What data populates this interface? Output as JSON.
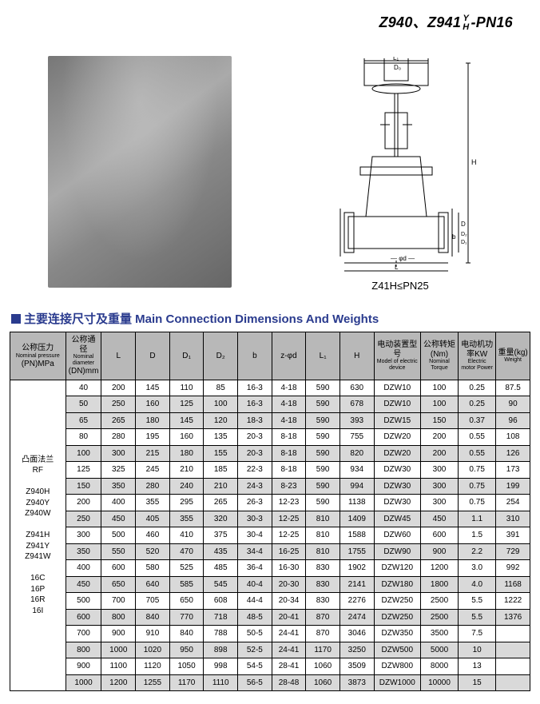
{
  "header": {
    "model_prefix": "Z940、Z941",
    "frac_top": "Y",
    "frac_bot": "H",
    "model_suffix": "-PN16"
  },
  "diagram_caption": "Z41H≤PN25",
  "section_title": "主要连接尺寸及重量 Main Connection Dimensions And Weights",
  "columns": [
    {
      "cn": "公称压力",
      "en": "Nominal pressure",
      "sub": "(PN)MPa"
    },
    {
      "cn": "公称通径",
      "en": "Nominal diameter",
      "sub": "(DN)mm"
    },
    {
      "cn": "L",
      "en": "",
      "sub": ""
    },
    {
      "cn": "D",
      "en": "",
      "sub": ""
    },
    {
      "cn": "D₁",
      "en": "",
      "sub": ""
    },
    {
      "cn": "D₂",
      "en": "",
      "sub": ""
    },
    {
      "cn": "b",
      "en": "",
      "sub": ""
    },
    {
      "cn": "z-φd",
      "en": "",
      "sub": ""
    },
    {
      "cn": "L₁",
      "en": "",
      "sub": ""
    },
    {
      "cn": "H",
      "en": "",
      "sub": ""
    },
    {
      "cn": "电动装置型号",
      "en": "Model of electric device",
      "sub": ""
    },
    {
      "cn": "公称转矩(Nm)",
      "en": "Nominal Torque",
      "sub": ""
    },
    {
      "cn": "电动机功率KW",
      "en": "Electric motor Power",
      "sub": ""
    },
    {
      "cn": "重量(kg)",
      "en": "Weight",
      "sub": ""
    }
  ],
  "row_header_lines": [
    "凸面法兰",
    "RF",
    "",
    "Z940H",
    "Z940Y",
    "Z940W",
    "",
    "Z941H",
    "Z941Y",
    "Z941W",
    "",
    "16C",
    "16P",
    "16R",
    "16I"
  ],
  "rows": [
    {
      "shade": false,
      "c": [
        "40",
        "200",
        "145",
        "110",
        "85",
        "16-3",
        "4-18",
        "590",
        "630",
        "DZW10",
        "100",
        "0.25",
        "87.5"
      ]
    },
    {
      "shade": true,
      "c": [
        "50",
        "250",
        "160",
        "125",
        "100",
        "16-3",
        "4-18",
        "590",
        "678",
        "DZW10",
        "100",
        "0.25",
        "90"
      ]
    },
    {
      "shade": true,
      "c": [
        "65",
        "265",
        "180",
        "145",
        "120",
        "18-3",
        "4-18",
        "590",
        "393",
        "DZW15",
        "150",
        "0.37",
        "96"
      ]
    },
    {
      "shade": false,
      "c": [
        "80",
        "280",
        "195",
        "160",
        "135",
        "20-3",
        "8-18",
        "590",
        "755",
        "DZW20",
        "200",
        "0.55",
        "108"
      ]
    },
    {
      "shade": true,
      "c": [
        "100",
        "300",
        "215",
        "180",
        "155",
        "20-3",
        "8-18",
        "590",
        "820",
        "DZW20",
        "200",
        "0.55",
        "126"
      ]
    },
    {
      "shade": false,
      "c": [
        "125",
        "325",
        "245",
        "210",
        "185",
        "22-3",
        "8-18",
        "590",
        "934",
        "DZW30",
        "300",
        "0.75",
        "173"
      ]
    },
    {
      "shade": true,
      "c": [
        "150",
        "350",
        "280",
        "240",
        "210",
        "24-3",
        "8-23",
        "590",
        "994",
        "DZW30",
        "300",
        "0.75",
        "199"
      ]
    },
    {
      "shade": false,
      "c": [
        "200",
        "400",
        "355",
        "295",
        "265",
        "26-3",
        "12-23",
        "590",
        "1138",
        "DZW30",
        "300",
        "0.75",
        "254"
      ]
    },
    {
      "shade": true,
      "c": [
        "250",
        "450",
        "405",
        "355",
        "320",
        "30-3",
        "12-25",
        "810",
        "1409",
        "DZW45",
        "450",
        "1.1",
        "310"
      ]
    },
    {
      "shade": false,
      "c": [
        "300",
        "500",
        "460",
        "410",
        "375",
        "30-4",
        "12-25",
        "810",
        "1588",
        "DZW60",
        "600",
        "1.5",
        "391"
      ]
    },
    {
      "shade": true,
      "c": [
        "350",
        "550",
        "520",
        "470",
        "435",
        "34-4",
        "16-25",
        "810",
        "1755",
        "DZW90",
        "900",
        "2.2",
        "729"
      ]
    },
    {
      "shade": false,
      "c": [
        "400",
        "600",
        "580",
        "525",
        "485",
        "36-4",
        "16-30",
        "830",
        "1902",
        "DZW120",
        "1200",
        "3.0",
        "992"
      ]
    },
    {
      "shade": true,
      "c": [
        "450",
        "650",
        "640",
        "585",
        "545",
        "40-4",
        "20-30",
        "830",
        "2141",
        "DZW180",
        "1800",
        "4.0",
        "1168"
      ]
    },
    {
      "shade": false,
      "c": [
        "500",
        "700",
        "705",
        "650",
        "608",
        "44-4",
        "20-34",
        "830",
        "2276",
        "DZW250",
        "2500",
        "5.5",
        "1222"
      ]
    },
    {
      "shade": true,
      "c": [
        "600",
        "800",
        "840",
        "770",
        "718",
        "48-5",
        "20-41",
        "870",
        "2474",
        "DZW250",
        "2500",
        "5.5",
        "1376"
      ]
    },
    {
      "shade": false,
      "c": [
        "700",
        "900",
        "910",
        "840",
        "788",
        "50-5",
        "24-41",
        "870",
        "3046",
        "DZW350",
        "3500",
        "7.5",
        ""
      ]
    },
    {
      "shade": true,
      "c": [
        "800",
        "1000",
        "1020",
        "950",
        "898",
        "52-5",
        "24-41",
        "1170",
        "3250",
        "DZW500",
        "5000",
        "10",
        ""
      ]
    },
    {
      "shade": false,
      "c": [
        "900",
        "1100",
        "1120",
        "1050",
        "998",
        "54-5",
        "28-41",
        "1060",
        "3509",
        "DZW800",
        "8000",
        "13",
        ""
      ]
    },
    {
      "shade": true,
      "c": [
        "1000",
        "1200",
        "1255",
        "1170",
        "1110",
        "56-5",
        "28-48",
        "1060",
        "3873",
        "DZW1000",
        "10000",
        "15",
        ""
      ]
    }
  ],
  "colors": {
    "title": "#2a3b8e",
    "header_bg": "#b8b8b8",
    "shade_bg": "#d9d9d9",
    "border": "#000000"
  }
}
